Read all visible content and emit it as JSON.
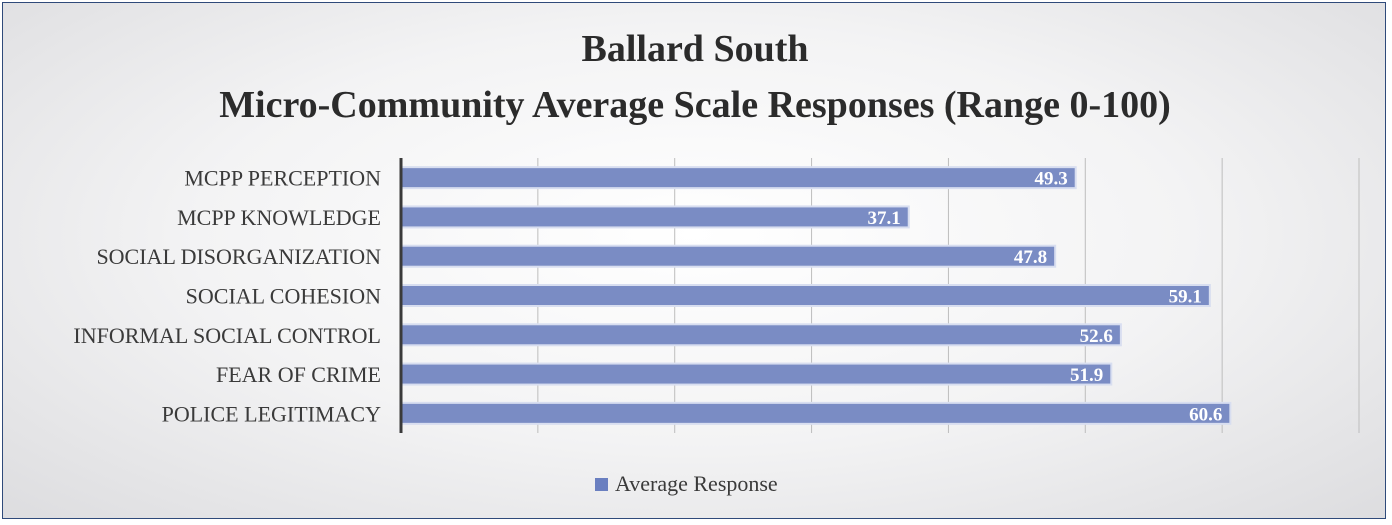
{
  "chart_data": {
    "type": "bar",
    "orientation": "horizontal",
    "title": "Ballard South",
    "subtitle": "Micro-Community Average Scale Responses (Range 0-100)",
    "categories": [
      "MCPP PERCEPTION",
      "MCPP KNOWLEDGE",
      "SOCIAL DISORGANIZATION",
      "SOCIAL COHESION",
      "INFORMAL SOCIAL CONTROL",
      "FEAR OF CRIME",
      "POLICE LEGITIMACY"
    ],
    "series": [
      {
        "name": "Average Response",
        "values": [
          49.3,
          37.1,
          47.8,
          59.1,
          52.6,
          51.9,
          60.6
        ],
        "labels": [
          "49.3",
          "37.1",
          "47.8",
          "59.1",
          "52.6",
          "51.9",
          "60.6"
        ]
      }
    ],
    "xlim": [
      0,
      70
    ],
    "gridlines": [
      10,
      20,
      30,
      40,
      50,
      60,
      70
    ],
    "grid": true,
    "legend_position": "bottom",
    "colors": {
      "bar": "#7A8CC4",
      "bar_edge": "#D8DEF0",
      "grid": "#BDBDBD",
      "axis": "#3A3A3A",
      "border": "#2F4A7A",
      "legend_swatch": "#6A7FC0"
    }
  }
}
